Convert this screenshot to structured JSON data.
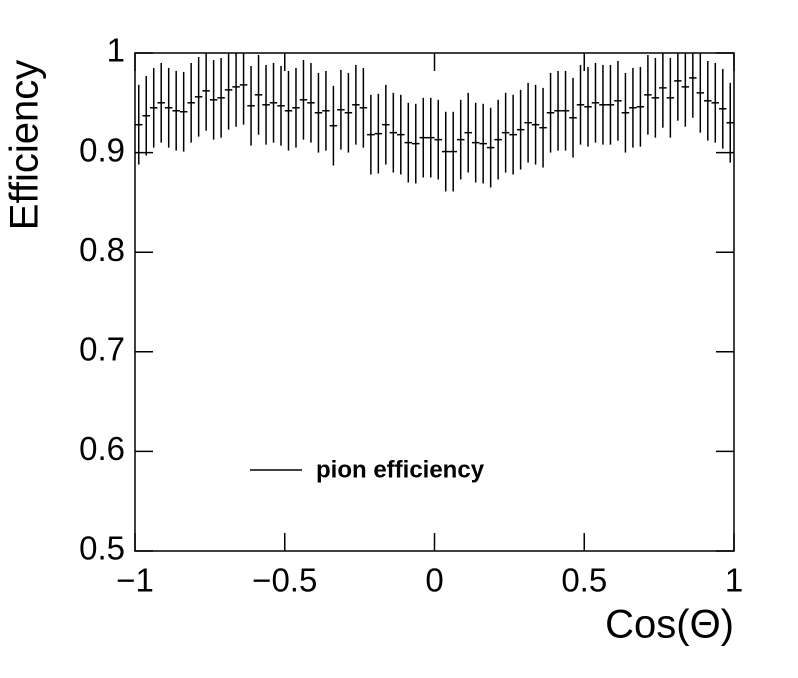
{
  "chart_data": {
    "type": "histogram",
    "x_label": "Cos(Θ)",
    "y_label": "Efficiency",
    "legend": "pion efficiency",
    "legend_position": "lower left",
    "color": "#000000",
    "bins": [
      -1,
      -0.975,
      -0.95,
      -0.925,
      -0.9,
      -0.875,
      -0.85,
      -0.825,
      -0.8,
      -0.775,
      -0.75,
      -0.725,
      -0.7,
      -0.675,
      -0.65,
      -0.625,
      -0.6,
      -0.575,
      -0.55,
      -0.525,
      -0.5,
      -0.475,
      -0.45,
      -0.425,
      -0.4,
      -0.375,
      -0.35,
      -0.325,
      -0.3,
      -0.275,
      -0.25,
      -0.225,
      -0.2,
      -0.175,
      -0.15,
      -0.125,
      -0.1,
      -0.075,
      -0.05,
      -0.025,
      0,
      0.025,
      0.05,
      0.075,
      0.1,
      0.125,
      0.15,
      0.175,
      0.2,
      0.225,
      0.25,
      0.275,
      0.3,
      0.325,
      0.35,
      0.375,
      0.4,
      0.425,
      0.45,
      0.475,
      0.5,
      0.525,
      0.55,
      0.575,
      0.6,
      0.625,
      0.65,
      0.675,
      0.7,
      0.725,
      0.75,
      0.775,
      0.8,
      0.825,
      0.85,
      0.875,
      0.9,
      0.925,
      0.95,
      0.975,
      1
    ],
    "values": [
      0.928,
      0.937,
      0.945,
      0.95,
      0.945,
      0.942,
      0.941,
      0.95,
      0.956,
      0.962,
      0.953,
      0.955,
      0.963,
      0.966,
      0.968,
      0.947,
      0.958,
      0.948,
      0.95,
      0.947,
      0.942,
      0.945,
      0.953,
      0.95,
      0.94,
      0.942,
      0.927,
      0.943,
      0.94,
      0.948,
      0.945,
      0.918,
      0.919,
      0.928,
      0.92,
      0.918,
      0.91,
      0.909,
      0.915,
      0.915,
      0.913,
      0.901,
      0.901,
      0.913,
      0.92,
      0.91,
      0.909,
      0.905,
      0.913,
      0.92,
      0.918,
      0.923,
      0.93,
      0.928,
      0.925,
      0.94,
      0.942,
      0.942,
      0.935,
      0.948,
      0.946,
      0.95,
      0.948,
      0.948,
      0.952,
      0.94,
      0.945,
      0.946,
      0.958,
      0.955,
      0.965,
      0.955,
      0.972,
      0.966,
      0.975,
      0.96,
      0.952,
      0.95,
      0.944,
      0.93
    ],
    "errors": [
      0.04,
      0.04,
      0.04,
      0.04,
      0.04,
      0.04,
      0.04,
      0.04,
      0.04,
      0.04,
      0.04,
      0.04,
      0.04,
      0.04,
      0.04,
      0.04,
      0.04,
      0.04,
      0.04,
      0.04,
      0.04,
      0.04,
      0.04,
      0.04,
      0.04,
      0.04,
      0.04,
      0.04,
      0.04,
      0.04,
      0.04,
      0.04,
      0.04,
      0.04,
      0.04,
      0.04,
      0.04,
      0.04,
      0.04,
      0.04,
      0.04,
      0.04,
      0.04,
      0.04,
      0.04,
      0.04,
      0.04,
      0.04,
      0.04,
      0.04,
      0.04,
      0.04,
      0.04,
      0.04,
      0.04,
      0.04,
      0.04,
      0.04,
      0.04,
      0.04,
      0.04,
      0.04,
      0.04,
      0.04,
      0.04,
      0.04,
      0.04,
      0.04,
      0.04,
      0.04,
      0.04,
      0.04,
      0.04,
      0.04,
      0.04,
      0.04,
      0.04,
      0.04,
      0.04,
      0.04
    ],
    "xlim": [
      -1,
      1
    ],
    "xticks": [
      {
        "value": -1,
        "label": "−1"
      },
      {
        "value": -0.5,
        "label": "−0.5"
      },
      0,
      0.5,
      1
    ],
    "ylim": [
      0.5,
      1
    ],
    "yticks": [
      0.5,
      0.6,
      0.7,
      0.8,
      0.9,
      1
    ]
  }
}
